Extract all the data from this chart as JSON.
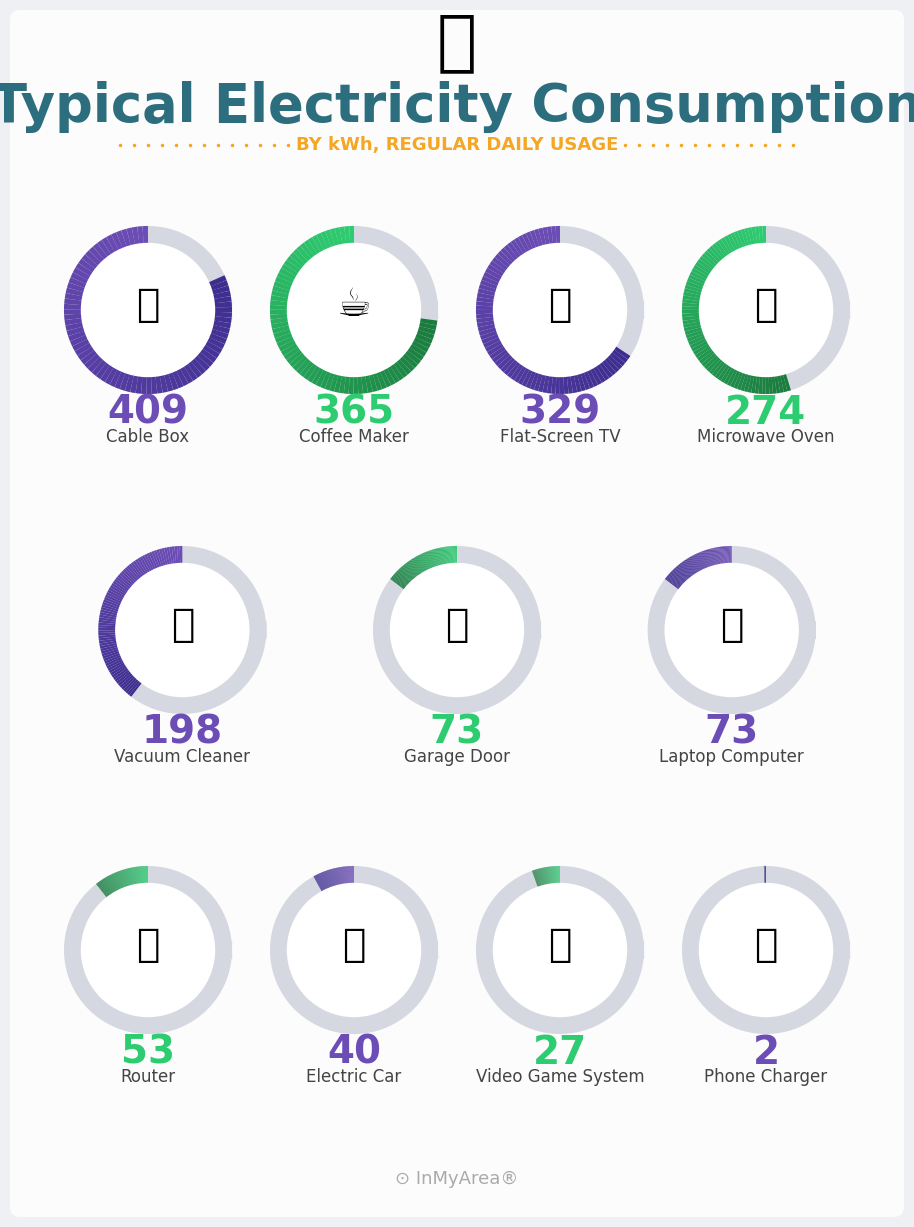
{
  "title": "Typical Electricity Consumption",
  "subtitle": "BY kWh, REGULAR DAILY USAGE",
  "bg_color": "#eef0f3",
  "title_color": "#2d6e7e",
  "subtitle_color": "#f5a623",
  "items": [
    {
      "value": 409,
      "label": "Cable Box",
      "color_num": "#6c4db5",
      "arc_colors": [
        "#6c4db5",
        "#3d3d8f"
      ],
      "row": 0,
      "col": 0
    },
    {
      "value": 365,
      "label": "Coffee Maker",
      "color_num": "#2ecc71",
      "arc_colors": [
        "#2ecc71",
        "#1a9e5a"
      ],
      "row": 0,
      "col": 1
    },
    {
      "value": 329,
      "label": "Flat-Screen TV",
      "color_num": "#6c4db5",
      "arc_colors": [
        "#6c4db5",
        "#3d3d8f"
      ],
      "row": 0,
      "col": 2
    },
    {
      "value": 274,
      "label": "Microwave Oven",
      "color_num": "#2ecc71",
      "arc_colors": [
        "#2ecc71",
        "#1a9e5a"
      ],
      "row": 0,
      "col": 3
    },
    {
      "value": 198,
      "label": "Vacuum Cleaner",
      "color_num": "#6c4db5",
      "arc_colors": [
        "#6c4db5",
        "#3d3d8f"
      ],
      "row": 1,
      "col": 0
    },
    {
      "value": 73,
      "label": "Garage Door",
      "color_num": "#2ecc71",
      "arc_colors": [
        "#2ecc71",
        "#1a9e5a"
      ],
      "row": 1,
      "col": 1
    },
    {
      "value": 73,
      "label": "Laptop Computer",
      "color_num": "#6c4db5",
      "arc_colors": [
        "#6c4db5",
        "#3d3d8f"
      ],
      "row": 1,
      "col": 2
    },
    {
      "value": 53,
      "label": "Router",
      "color_num": "#2ecc71",
      "arc_colors": [
        "#2ecc71",
        "#1a9e5a"
      ],
      "row": 2,
      "col": 0
    },
    {
      "value": 40,
      "label": "Electric Car",
      "color_num": "#6c4db5",
      "arc_colors": [
        "#6c4db5",
        "#3d3d8f"
      ],
      "row": 2,
      "col": 1
    },
    {
      "value": 27,
      "label": "Video Game System",
      "color_num": "#2ecc71",
      "arc_colors": [
        "#2ecc71",
        "#1a9e5a"
      ],
      "row": 2,
      "col": 2
    },
    {
      "value": 2,
      "label": "Phone Charger",
      "color_num": "#6c4db5",
      "arc_colors": [
        "#6c4db5",
        "#3d3d8f"
      ],
      "row": 2,
      "col": 3
    }
  ],
  "max_value": 500,
  "row0_cols": 4,
  "row1_cols": 3,
  "row2_cols": 4,
  "icons": {
    "Cable Box": "",
    "Coffee Maker": "",
    "Flat-Screen TV": "",
    "Microwave Oven": "",
    "Vacuum Cleaner": "",
    "Garage Door": "",
    "Laptop Computer": "",
    "Router": "",
    "Electric Car": "",
    "Video Game System": "",
    "Phone Charger": ""
  },
  "brand_text": "InMyArea",
  "brand_color": "#aaaaaa"
}
